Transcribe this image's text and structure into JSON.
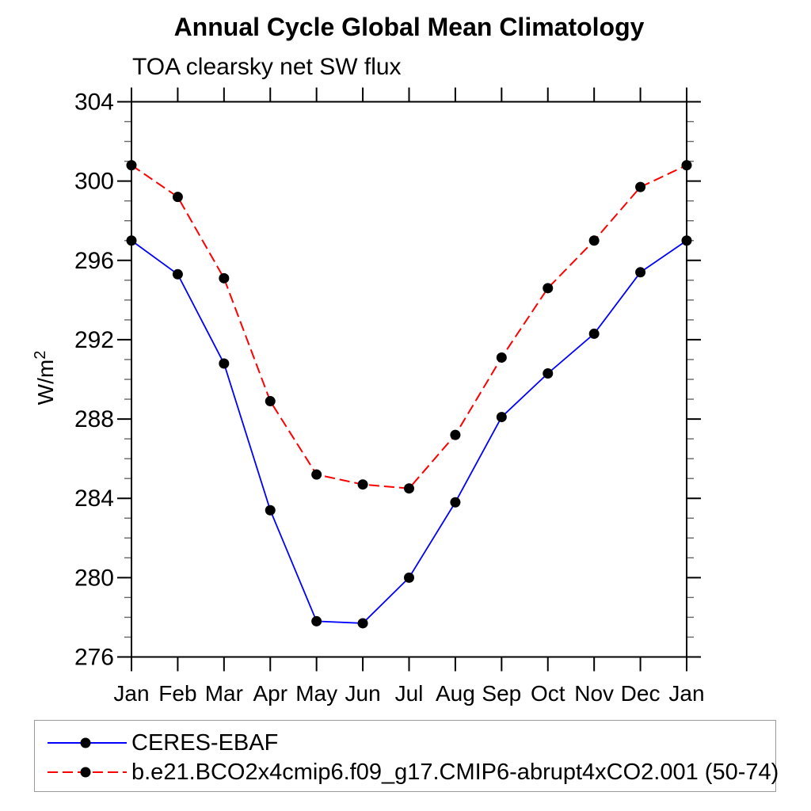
{
  "page": {
    "title": "Annual Cycle Global Mean Climatology",
    "subtitle": "TOA clearsky net SW flux"
  },
  "y_axis": {
    "label_base": "W/m",
    "label_exponent": "2"
  },
  "chart_data": {
    "type": "line",
    "title": "Annual Cycle Global Mean Climatology",
    "subtitle": "TOA clearsky net SW flux",
    "xlabel": "",
    "ylabel": "W/m^2",
    "ylim": [
      276,
      304
    ],
    "ytick_major_interval": 4,
    "ytick_minor_interval": 1,
    "ytick_labels": [
      "276",
      "280",
      "284",
      "288",
      "292",
      "296",
      "300",
      "304"
    ],
    "grid": false,
    "legend_position": "bottom-left-box",
    "categories": [
      "Jan",
      "Feb",
      "Mar",
      "Apr",
      "May",
      "Jun",
      "Jul",
      "Aug",
      "Sep",
      "Oct",
      "Nov",
      "Dec",
      "Jan"
    ],
    "series": [
      {
        "name": "CERES-EBAF",
        "color": "#0000ff",
        "line_style": "solid",
        "marker": "filled-circle",
        "marker_color": "#000000",
        "values": [
          297.0,
          295.3,
          290.8,
          283.4,
          277.8,
          277.7,
          280.0,
          283.8,
          288.1,
          290.3,
          292.3,
          295.4,
          297.0
        ]
      },
      {
        "name": "b.e21.BCO2x4cmip6.f09_g17.CMIP6-abrupt4xCO2.001 (50-74)",
        "color": "#ff0000",
        "line_style": "dashed",
        "marker": "filled-circle",
        "marker_color": "#000000",
        "values": [
          300.8,
          299.2,
          295.1,
          288.9,
          285.2,
          284.7,
          284.5,
          287.2,
          291.1,
          294.6,
          297.0,
          299.7,
          300.8
        ]
      }
    ]
  }
}
